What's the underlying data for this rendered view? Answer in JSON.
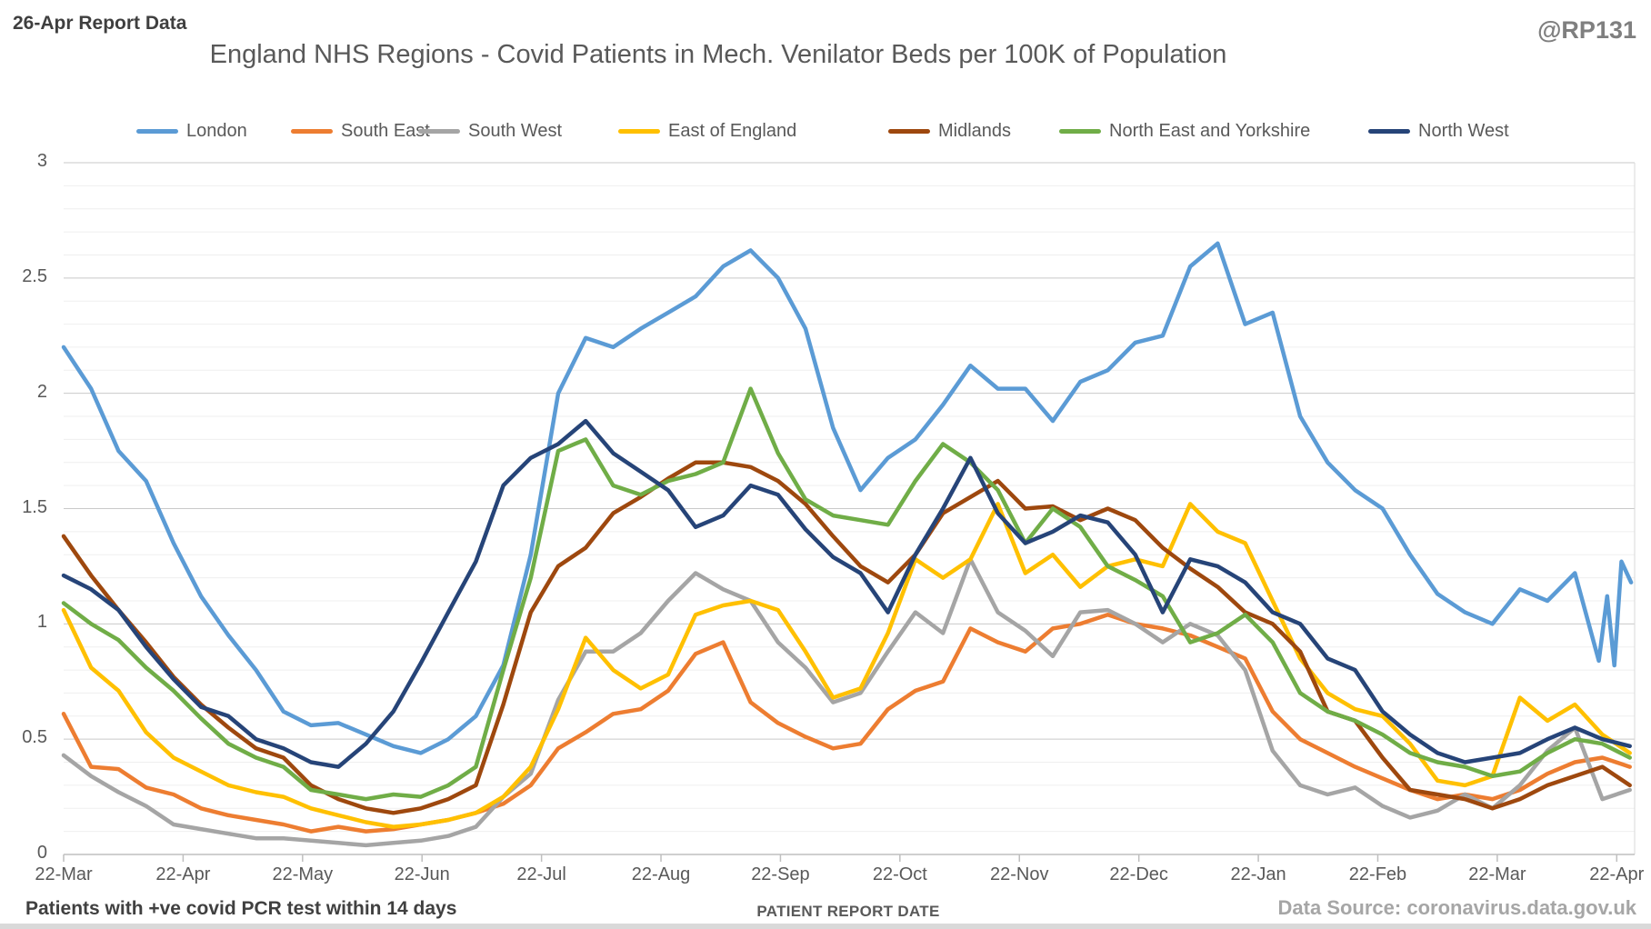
{
  "report_label": "26-Apr Report Data",
  "watermark": "@RP131",
  "title": "England NHS Regions - Covid Patients in Mech. Venilator Beds per 100K of Population",
  "footer": {
    "left_note": "Patients with +ve covid PCR test within 14 days",
    "x_axis_title": "PATIENT REPORT DATE",
    "data_source": "Data Source: coronavirus.data.gov.uk"
  },
  "chart_data": {
    "type": "line",
    "title": "England NHS Regions - Covid Patients in Mech. Venilator Beds per 100K of Population",
    "xlabel": "PATIENT REPORT DATE",
    "ylabel": "",
    "ylim": [
      0,
      3
    ],
    "x_tick_labels": [
      "22-Mar",
      "22-Apr",
      "22-May",
      "22-Jun",
      "22-Jul",
      "22-Aug",
      "22-Sep",
      "22-Oct",
      "22-Nov",
      "22-Dec",
      "22-Jan",
      "22-Feb",
      "22-Mar",
      "22-Apr"
    ],
    "y_tick_labels": [
      "0",
      "0.5",
      "1",
      "1.5",
      "2",
      "2.5",
      "3"
    ],
    "y_major_step": 0.5,
    "y_minor_step": 0.1,
    "grid": {
      "major_color": "#c9c9c9",
      "minor_color": "#efefef",
      "axis_color": "#bfbfbf"
    },
    "legend_position": "top",
    "x_domain_months": [
      0,
      13.15
    ],
    "x_step_months": 0.23,
    "x_note": "values sampled weekly starting 22-Mar; x in months since first tick",
    "series": [
      {
        "name": "London",
        "color": "#5B9BD5",
        "values": [
          2.2,
          2.02,
          1.75,
          1.62,
          1.35,
          1.12,
          0.95,
          0.8,
          0.62,
          0.56,
          0.57,
          0.52,
          0.47,
          0.44,
          0.5,
          0.6,
          0.82,
          1.3,
          2.0,
          2.24,
          2.2,
          2.28,
          2.35,
          2.42,
          2.55,
          2.62,
          2.5,
          2.28,
          1.85,
          1.58,
          1.72,
          1.8,
          1.95,
          2.12,
          2.02,
          2.02,
          1.88,
          2.05,
          2.1,
          2.22,
          2.25,
          2.55,
          2.65,
          2.3,
          2.35,
          1.9,
          1.7,
          1.58,
          1.5,
          1.3,
          1.13,
          1.05,
          1.0,
          1.15,
          1.1,
          1.22
        ],
        "tail_points": [
          [
            12.85,
            0.84
          ],
          [
            12.92,
            1.12
          ],
          [
            12.98,
            0.82
          ],
          [
            13.04,
            1.27
          ],
          [
            13.12,
            1.18
          ]
        ]
      },
      {
        "name": "South East",
        "color": "#ED7D31",
        "values": [
          0.61,
          0.38,
          0.37,
          0.29,
          0.26,
          0.2,
          0.17,
          0.15,
          0.13,
          0.1,
          0.12,
          0.1,
          0.11,
          0.13,
          0.15,
          0.18,
          0.22,
          0.3,
          0.46,
          0.53,
          0.61,
          0.63,
          0.71,
          0.87,
          0.92,
          0.66,
          0.57,
          0.51,
          0.46,
          0.48,
          0.63,
          0.71,
          0.75,
          0.98,
          0.92,
          0.88,
          0.98,
          1.0,
          1.04,
          1.0,
          0.98,
          0.95,
          0.9,
          0.85,
          0.62,
          0.5,
          0.44,
          0.38,
          0.33,
          0.28,
          0.24,
          0.26,
          0.24,
          0.28,
          0.35,
          0.4,
          0.42,
          0.38
        ]
      },
      {
        "name": "South West",
        "color": "#A5A5A5",
        "values": [
          0.43,
          0.34,
          0.27,
          0.21,
          0.13,
          0.11,
          0.09,
          0.07,
          0.07,
          0.06,
          0.05,
          0.04,
          0.05,
          0.06,
          0.08,
          0.12,
          0.25,
          0.35,
          0.67,
          0.88,
          0.88,
          0.96,
          1.1,
          1.22,
          1.15,
          1.1,
          0.92,
          0.81,
          0.66,
          0.7,
          0.88,
          1.05,
          0.96,
          1.28,
          1.05,
          0.97,
          0.86,
          1.05,
          1.06,
          1.0,
          0.92,
          1.0,
          0.95,
          0.8,
          0.45,
          0.3,
          0.26,
          0.29,
          0.21,
          0.16,
          0.19,
          0.26,
          0.2,
          0.3,
          0.45,
          0.55,
          0.24,
          0.28
        ]
      },
      {
        "name": "East of England",
        "color": "#FFC000",
        "values": [
          1.06,
          0.81,
          0.71,
          0.53,
          0.42,
          0.36,
          0.3,
          0.27,
          0.25,
          0.2,
          0.17,
          0.14,
          0.12,
          0.13,
          0.15,
          0.18,
          0.25,
          0.38,
          0.63,
          0.94,
          0.8,
          0.72,
          0.78,
          1.04,
          1.08,
          1.1,
          1.06,
          0.88,
          0.68,
          0.72,
          0.96,
          1.28,
          1.2,
          1.28,
          1.52,
          1.22,
          1.3,
          1.16,
          1.25,
          1.28,
          1.25,
          1.52,
          1.4,
          1.35,
          1.1,
          0.85,
          0.7,
          0.63,
          0.6,
          0.48,
          0.32,
          0.3,
          0.34,
          0.68,
          0.58,
          0.65,
          0.52,
          0.44
        ]
      },
      {
        "name": "Midlands",
        "color": "#9E480E",
        "values": [
          1.38,
          1.21,
          1.06,
          0.92,
          0.77,
          0.65,
          0.55,
          0.46,
          0.42,
          0.3,
          0.24,
          0.2,
          0.18,
          0.2,
          0.24,
          0.3,
          0.65,
          1.05,
          1.25,
          1.33,
          1.48,
          1.55,
          1.63,
          1.7,
          1.7,
          1.68,
          1.62,
          1.52,
          1.38,
          1.25,
          1.18,
          1.3,
          1.48,
          1.55,
          1.62,
          1.5,
          1.51,
          1.45,
          1.5,
          1.45,
          1.33,
          1.24,
          1.16,
          1.05,
          1.0,
          0.88,
          0.62,
          0.58,
          0.42,
          0.28,
          0.26,
          0.24,
          0.2,
          0.24,
          0.3,
          0.34,
          0.38,
          0.3
        ]
      },
      {
        "name": "North East and Yorkshire",
        "color": "#70AD47",
        "values": [
          1.09,
          1.0,
          0.93,
          0.81,
          0.71,
          0.59,
          0.48,
          0.42,
          0.38,
          0.28,
          0.26,
          0.24,
          0.26,
          0.25,
          0.3,
          0.38,
          0.8,
          1.2,
          1.75,
          1.8,
          1.6,
          1.56,
          1.62,
          1.65,
          1.7,
          2.02,
          1.74,
          1.54,
          1.47,
          1.45,
          1.43,
          1.62,
          1.78,
          1.7,
          1.58,
          1.35,
          1.5,
          1.42,
          1.25,
          1.19,
          1.12,
          0.92,
          0.96,
          1.04,
          0.92,
          0.7,
          0.62,
          0.58,
          0.52,
          0.44,
          0.4,
          0.38,
          0.34,
          0.36,
          0.44,
          0.5,
          0.48,
          0.42
        ]
      },
      {
        "name": "North West",
        "color": "#264478",
        "values": [
          1.21,
          1.15,
          1.06,
          0.9,
          0.76,
          0.64,
          0.6,
          0.5,
          0.46,
          0.4,
          0.38,
          0.48,
          0.62,
          0.83,
          1.05,
          1.27,
          1.6,
          1.72,
          1.78,
          1.88,
          1.74,
          1.66,
          1.58,
          1.42,
          1.47,
          1.6,
          1.56,
          1.41,
          1.29,
          1.22,
          1.05,
          1.3,
          1.5,
          1.72,
          1.48,
          1.35,
          1.4,
          1.47,
          1.44,
          1.3,
          1.05,
          1.28,
          1.25,
          1.18,
          1.05,
          1.0,
          0.85,
          0.8,
          0.62,
          0.52,
          0.44,
          0.4,
          0.42,
          0.44,
          0.5,
          0.55,
          0.5,
          0.47
        ]
      }
    ]
  }
}
